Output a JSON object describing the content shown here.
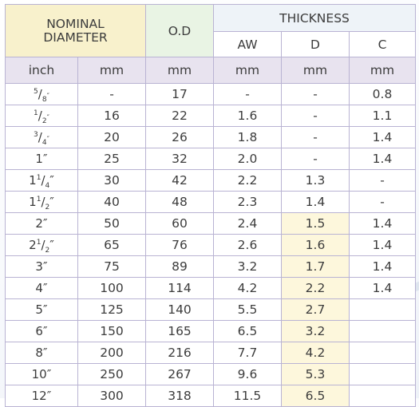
{
  "header": {
    "nominal_line1": "NOMINAL",
    "nominal_line2": "DIAMETER",
    "od": "O.D",
    "thickness": "THICKNESS",
    "aw": "AW",
    "d": "D",
    "c": "C"
  },
  "units": [
    "inch",
    "mm",
    "mm",
    "mm",
    "mm",
    "mm"
  ],
  "rows": [
    {
      "inch_whole": "",
      "inch_num": "5",
      "inch_den": "8",
      "mm": "-",
      "od": "17",
      "aw": "-",
      "d": "-",
      "c": "0.8"
    },
    {
      "inch_whole": "",
      "inch_num": "1",
      "inch_den": "2",
      "mm": "16",
      "od": "22",
      "aw": "1.6",
      "d": "-",
      "c": "1.1"
    },
    {
      "inch_whole": "",
      "inch_num": "3",
      "inch_den": "4",
      "mm": "20",
      "od": "26",
      "aw": "1.8",
      "d": "-",
      "c": "1.4"
    },
    {
      "inch_whole": "1",
      "inch_num": "",
      "inch_den": "",
      "mm": "25",
      "od": "32",
      "aw": "2.0",
      "d": "-",
      "c": "1.4"
    },
    {
      "inch_whole": "1",
      "inch_num": "1",
      "inch_den": "4",
      "mm": "30",
      "od": "42",
      "aw": "2.2",
      "d": "1.3",
      "c": "-"
    },
    {
      "inch_whole": "1",
      "inch_num": "1",
      "inch_den": "2",
      "mm": "40",
      "od": "48",
      "aw": "2.3",
      "d": "1.4",
      "c": "-"
    },
    {
      "inch_whole": "2",
      "inch_num": "",
      "inch_den": "",
      "mm": "50",
      "od": "60",
      "aw": "2.4",
      "d": "1.5",
      "c": "1.4"
    },
    {
      "inch_whole": "2",
      "inch_num": "1",
      "inch_den": "2",
      "mm": "65",
      "od": "76",
      "aw": "2.6",
      "d": "1.6",
      "c": "1.4"
    },
    {
      "inch_whole": "3",
      "inch_num": "",
      "inch_den": "",
      "mm": "75",
      "od": "89",
      "aw": "3.2",
      "d": "1.7",
      "c": "1.4"
    },
    {
      "inch_whole": "4",
      "inch_num": "",
      "inch_den": "",
      "mm": "100",
      "od": "114",
      "aw": "4.2",
      "d": "2.2",
      "c": "1.4"
    },
    {
      "inch_whole": "5",
      "inch_num": "",
      "inch_den": "",
      "mm": "125",
      "od": "140",
      "aw": "5.5",
      "d": "2.7",
      "c": ""
    },
    {
      "inch_whole": "6",
      "inch_num": "",
      "inch_den": "",
      "mm": "150",
      "od": "165",
      "aw": "6.5",
      "d": "3.2",
      "c": ""
    },
    {
      "inch_whole": "8",
      "inch_num": "",
      "inch_den": "",
      "mm": "200",
      "od": "216",
      "aw": "7.7",
      "d": "4.2",
      "c": ""
    },
    {
      "inch_whole": "10",
      "inch_num": "",
      "inch_den": "",
      "mm": "250",
      "od": "267",
      "aw": "9.6",
      "d": "5.3",
      "c": ""
    },
    {
      "inch_whole": "12",
      "inch_num": "",
      "inch_den": "",
      "mm": "300",
      "od": "318",
      "aw": "11.5",
      "d": "6.5",
      "c": ""
    }
  ],
  "inch_mark": "″",
  "colors": {
    "nominal_header_bg": "#f8f1cc",
    "od_header_bg": "#e9f4e4",
    "units_row_bg": "#e8e3ef",
    "highlight_bg": "#fdf7dc",
    "grid_line": "#b9b3d3"
  }
}
